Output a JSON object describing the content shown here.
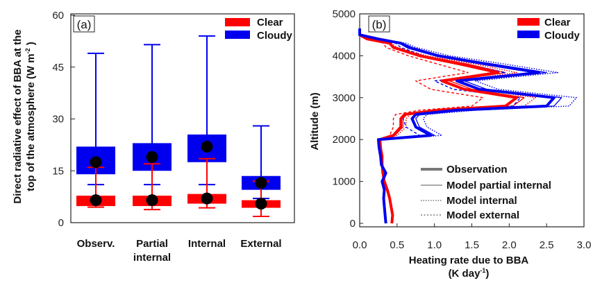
{
  "colors": {
    "clear": "#ff0000",
    "cloudy": "#0000ee",
    "dot": "#000000",
    "axis": "#222222"
  },
  "chart_data": [
    {
      "type": "box",
      "panel_label": "(a)",
      "ylabel_line1": "Direct radiative effect of BBA  at the",
      "ylabel_line2": "top of the atmosphere (W m",
      "ylabel_sup": "-2",
      "ylabel_end": " )",
      "ylim": [
        0,
        60
      ],
      "yticks": [
        "0",
        "15",
        "30",
        "45",
        "60"
      ],
      "yticks_values": [
        0,
        15,
        30,
        45,
        60
      ],
      "categories": [
        "Observ.",
        "Partial internal",
        "Internal",
        "External"
      ],
      "category_lines": [
        [
          "Observ."
        ],
        [
          "Partial",
          "internal"
        ],
        [
          "Internal"
        ],
        [
          "External"
        ]
      ],
      "legend": [
        {
          "name": "Clear",
          "color_key": "clear"
        },
        {
          "name": "Cloudy",
          "color_key": "cloudy"
        }
      ],
      "series": [
        {
          "name": "Clear",
          "boxes": [
            {
              "whisker_low": 4.5,
              "q1": 4.8,
              "q3": 7.8,
              "whisker_high": 16.0,
              "mean": 6.5
            },
            {
              "whisker_low": 3.8,
              "q1": 4.8,
              "q3": 7.8,
              "whisker_high": 17.0,
              "mean": 6.5
            },
            {
              "whisker_low": 4.3,
              "q1": 5.5,
              "q3": 8.3,
              "whisker_high": 18.5,
              "mean": 7.0
            },
            {
              "whisker_low": 1.8,
              "q1": 4.3,
              "q3": 6.5,
              "whisker_high": 12.0,
              "mean": 5.5
            }
          ]
        },
        {
          "name": "Cloudy",
          "boxes": [
            {
              "whisker_low": 11.0,
              "q1": 14.0,
              "q3": 22.0,
              "whisker_high": 49.0,
              "mean": 17.5
            },
            {
              "whisker_low": 11.0,
              "q1": 15.0,
              "q3": 23.0,
              "whisker_high": 51.5,
              "mean": 19.0
            },
            {
              "whisker_low": 11.0,
              "q1": 17.5,
              "q3": 25.5,
              "whisker_high": 54.0,
              "mean": 22.0
            },
            {
              "whisker_low": 7.0,
              "q1": 9.5,
              "q3": 13.5,
              "whisker_high": 28.0,
              "mean": 11.5
            }
          ]
        }
      ],
      "grid": false,
      "legend_position": "top-right"
    },
    {
      "type": "line",
      "panel_label": "(b)",
      "ylabel": "Altitude (m)",
      "xlabel_line1": "Heating rate due to BBA",
      "xlabel_line2_pre": "(K day",
      "xlabel_sup": "-1",
      "xlabel_line2_post": ")",
      "xlim": [
        0,
        3
      ],
      "ylim": [
        0,
        5000
      ],
      "xticks": [
        "0.0",
        "0.5",
        "1.0",
        "1.5",
        "2.0",
        "2.5",
        "3.0"
      ],
      "xticks_values": [
        0,
        0.5,
        1.0,
        1.5,
        2.0,
        2.5,
        3.0
      ],
      "yticks": [
        "0",
        "1000",
        "2000",
        "3000",
        "4000",
        "5000"
      ],
      "yticks_values": [
        0,
        1000,
        2000,
        3000,
        4000,
        5000
      ],
      "legend_color": [
        {
          "name": "Clear",
          "color_key": "clear"
        },
        {
          "name": "Cloudy",
          "color_key": "cloudy"
        }
      ],
      "legend_style": [
        {
          "name": "Observation",
          "style": "thick"
        },
        {
          "name": "Model partial internal",
          "style": "thin"
        },
        {
          "name": "Model internal",
          "style": "dotted"
        },
        {
          "name": "Model external",
          "style": "dashed"
        }
      ],
      "y": [
        0,
        200,
        400,
        600,
        800,
        1000,
        1200,
        1400,
        1600,
        1800,
        2000,
        2100,
        2300,
        2500,
        2600,
        2700,
        2800,
        3000,
        3200,
        3400,
        3600,
        3800,
        4000,
        4200,
        4300,
        4400,
        4500,
        4650
      ],
      "series": [
        {
          "name": "Clear Observation",
          "color_key": "clear",
          "style": "thick",
          "x": [
            0.43,
            0.44,
            0.42,
            0.4,
            0.37,
            0.33,
            0.31,
            0.3,
            0.3,
            0.28,
            0.27,
            0.45,
            0.55,
            0.55,
            0.6,
            1.05,
            1.95,
            2.1,
            1.4,
            1.1,
            1.85,
            1.35,
            0.8,
            0.45,
            0.4,
            0.1,
            0.0,
            0.0
          ]
        },
        {
          "name": "Clear Model partial internal",
          "color_key": "clear",
          "style": "thin",
          "x": [
            0.43,
            0.44,
            0.42,
            0.4,
            0.37,
            0.33,
            0.31,
            0.3,
            0.3,
            0.28,
            0.27,
            0.47,
            0.58,
            0.58,
            0.63,
            1.1,
            2.05,
            2.2,
            1.5,
            1.2,
            1.95,
            1.45,
            0.85,
            0.47,
            0.4,
            0.1,
            0.0,
            0.0
          ]
        },
        {
          "name": "Clear Model internal",
          "color_key": "clear",
          "style": "dotted",
          "x": [
            0.43,
            0.44,
            0.42,
            0.4,
            0.37,
            0.33,
            0.31,
            0.3,
            0.3,
            0.28,
            0.27,
            0.5,
            0.62,
            0.62,
            0.68,
            1.2,
            2.2,
            2.35,
            1.6,
            1.3,
            2.1,
            1.55,
            0.9,
            0.5,
            0.42,
            0.1,
            0.0,
            0.0
          ]
        },
        {
          "name": "Clear Model external",
          "color_key": "clear",
          "style": "dashed",
          "x": [
            0.43,
            0.44,
            0.42,
            0.4,
            0.37,
            0.33,
            0.31,
            0.3,
            0.3,
            0.28,
            0.27,
            0.4,
            0.45,
            0.45,
            0.48,
            0.8,
            1.5,
            1.65,
            0.95,
            0.75,
            1.45,
            1.05,
            0.65,
            0.35,
            0.32,
            0.08,
            0.0,
            0.0
          ]
        },
        {
          "name": "Cloudy Observation",
          "color_key": "cloudy",
          "style": "thick",
          "x": [
            0.35,
            0.34,
            0.33,
            0.32,
            0.33,
            0.3,
            0.35,
            0.29,
            0.28,
            0.26,
            0.25,
            0.95,
            0.75,
            0.7,
            0.75,
            1.3,
            2.5,
            2.6,
            1.6,
            1.3,
            2.4,
            1.7,
            1.05,
            0.65,
            0.55,
            0.25,
            0.0,
            0.0
          ]
        },
        {
          "name": "Cloudy Model partial internal",
          "color_key": "cloudy",
          "style": "thin",
          "x": [
            0.35,
            0.34,
            0.33,
            0.32,
            0.33,
            0.3,
            0.35,
            0.29,
            0.28,
            0.26,
            0.25,
            1.0,
            0.8,
            0.75,
            0.8,
            1.4,
            2.6,
            2.7,
            1.7,
            1.4,
            2.5,
            1.8,
            1.1,
            0.7,
            0.58,
            0.25,
            0.0,
            0.0
          ]
        },
        {
          "name": "Cloudy Model internal",
          "color_key": "cloudy",
          "style": "dotted",
          "x": [
            0.35,
            0.34,
            0.33,
            0.32,
            0.33,
            0.3,
            0.35,
            0.29,
            0.28,
            0.26,
            0.25,
            1.1,
            0.9,
            0.85,
            0.9,
            1.55,
            2.8,
            2.9,
            1.85,
            1.55,
            2.65,
            1.95,
            1.2,
            0.75,
            0.62,
            0.28,
            0.0,
            0.0
          ]
        },
        {
          "name": "Cloudy Model external",
          "color_key": "cloudy",
          "style": "dashed",
          "x": [
            0.35,
            0.34,
            0.33,
            0.32,
            0.33,
            0.3,
            0.35,
            0.29,
            0.28,
            0.26,
            0.25,
            0.8,
            0.62,
            0.58,
            0.62,
            1.05,
            2.05,
            2.15,
            1.25,
            1.0,
            1.95,
            1.4,
            0.85,
            0.55,
            0.48,
            0.2,
            0.0,
            0.0
          ]
        }
      ],
      "grid": false,
      "legend_position": "top-right and bottom-right"
    }
  ]
}
